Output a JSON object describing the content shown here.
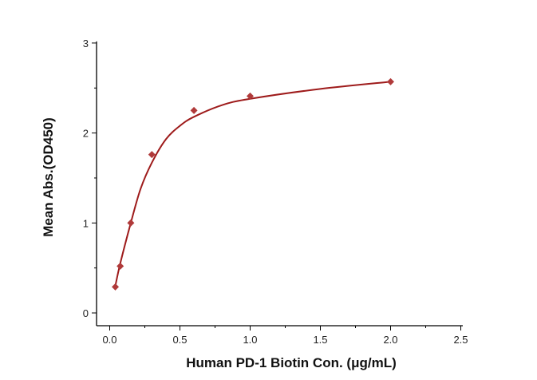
{
  "chart_data": {
    "type": "scatter",
    "title": "",
    "xlabel": "Human PD-1 Biotin Con. (μg/mL)",
    "ylabel": "Mean Abs.(OD450)",
    "xlim": [
      0,
      2.5
    ],
    "ylim": [
      0,
      3
    ],
    "xticks": [
      "0.0",
      "0.5",
      "1.0",
      "1.5",
      "2.0",
      "2.5"
    ],
    "yticks": [
      "0",
      "1",
      "2",
      "3"
    ],
    "grid": false,
    "color": "#b03a3a",
    "curve_color": "#9e1b1b",
    "series": [
      {
        "name": "data",
        "x": [
          0.04,
          0.075,
          0.15,
          0.3,
          0.6,
          1.0,
          2.0
        ],
        "y": [
          0.29,
          0.52,
          1.0,
          1.76,
          2.25,
          2.41,
          2.57
        ]
      }
    ],
    "fit_curve": {
      "x": [
        0.04,
        0.075,
        0.15,
        0.22,
        0.3,
        0.4,
        0.5,
        0.6,
        0.8,
        1.0,
        1.5,
        2.0
      ],
      "y": [
        0.3,
        0.55,
        1.0,
        1.38,
        1.67,
        1.93,
        2.08,
        2.18,
        2.31,
        2.38,
        2.49,
        2.57
      ]
    }
  }
}
